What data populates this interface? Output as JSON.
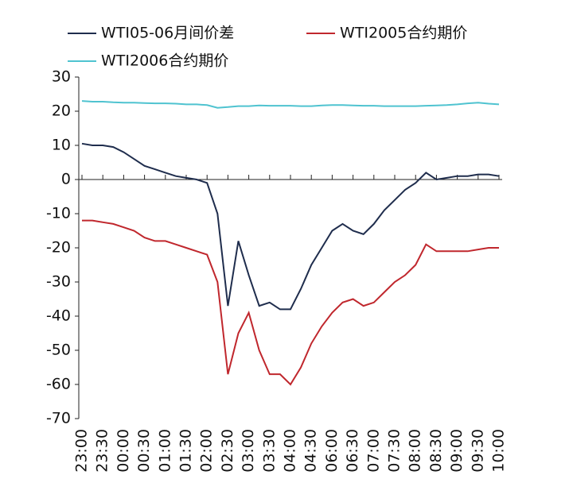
{
  "chart_data": {
    "type": "line",
    "x": [
      0,
      0.5,
      1,
      1.5,
      2,
      2.5,
      3,
      3.5,
      4,
      4.5,
      5,
      5.5,
      6,
      6.5,
      7,
      7.5,
      8,
      8.5,
      9,
      9.5,
      10,
      10.5,
      11,
      11.5,
      12,
      12.5,
      13,
      13.5,
      14,
      14.5,
      15,
      15.5,
      16,
      16.5,
      17,
      17.5,
      18,
      18.5,
      19,
      19.5,
      20
    ],
    "series": [
      {
        "name": "WTI05-06月间价差",
        "color": "#1f2d4d",
        "values": [
          10.5,
          10,
          10,
          9.5,
          8,
          6,
          4,
          3,
          2,
          1,
          0.5,
          0,
          -1,
          -10,
          -37,
          -18,
          -28,
          -37,
          -36,
          -38,
          -38,
          -32,
          -25,
          -20,
          -15,
          -13,
          -15,
          -16,
          -13,
          -9,
          -6,
          -3,
          -1,
          2,
          0,
          0.5,
          1,
          1,
          1.5,
          1.5,
          1
        ]
      },
      {
        "name": "WTI2005合约期价",
        "color": "#c0272d",
        "values": [
          -12,
          -12,
          -12.5,
          -13,
          -14,
          -15,
          -17,
          -18,
          -18,
          -19,
          -20,
          -21,
          -22,
          -30,
          -57,
          -45,
          -39,
          -50,
          -57,
          -57,
          -60,
          -55,
          -48,
          -43,
          -39,
          -36,
          -35,
          -37,
          -36,
          -33,
          -30,
          -28,
          -25,
          -19,
          -21,
          -21,
          -21,
          -21,
          -20.5,
          -20,
          -20
        ]
      },
      {
        "name": "WTI2006合约期价",
        "color": "#4fc3d0",
        "values": [
          23,
          22.8,
          22.8,
          22.6,
          22.5,
          22.5,
          22.4,
          22.3,
          22.3,
          22.2,
          22,
          22,
          21.8,
          21,
          21.2,
          21.5,
          21.5,
          21.7,
          21.6,
          21.6,
          21.6,
          21.5,
          21.5,
          21.7,
          21.8,
          21.8,
          21.7,
          21.6,
          21.6,
          21.5,
          21.5,
          21.5,
          21.5,
          21.6,
          21.7,
          21.8,
          22,
          22.3,
          22.5,
          22.2,
          22
        ]
      }
    ],
    "ylim": [
      -70,
      30
    ],
    "yticks": [
      -70,
      -60,
      -50,
      -40,
      -30,
      -20,
      -10,
      0,
      10,
      20,
      30
    ],
    "xlim": [
      0,
      20
    ],
    "xticks": [
      {
        "value": 0,
        "label": "23:00"
      },
      {
        "value": 1,
        "label": "23:30"
      },
      {
        "value": 2,
        "label": "00:00"
      },
      {
        "value": 3,
        "label": "00:30"
      },
      {
        "value": 4,
        "label": "01:00"
      },
      {
        "value": 5,
        "label": "01:30"
      },
      {
        "value": 6,
        "label": "02:00"
      },
      {
        "value": 7,
        "label": "02:30"
      },
      {
        "value": 8,
        "label": "03:00"
      },
      {
        "value": 9,
        "label": "03:30"
      },
      {
        "value": 10,
        "label": "04:00"
      },
      {
        "value": 11,
        "label": "04:30"
      },
      {
        "value": 12,
        "label": "06:00"
      },
      {
        "value": 13,
        "label": "06:30"
      },
      {
        "value": 14,
        "label": "07:00"
      },
      {
        "value": 15,
        "label": "07:30"
      },
      {
        "value": 16,
        "label": "08:00"
      },
      {
        "value": 17,
        "label": "08:30"
      },
      {
        "value": 18,
        "label": "09:00"
      },
      {
        "value": 19,
        "label": "09:30"
      },
      {
        "value": 20,
        "label": "10:00"
      }
    ]
  }
}
